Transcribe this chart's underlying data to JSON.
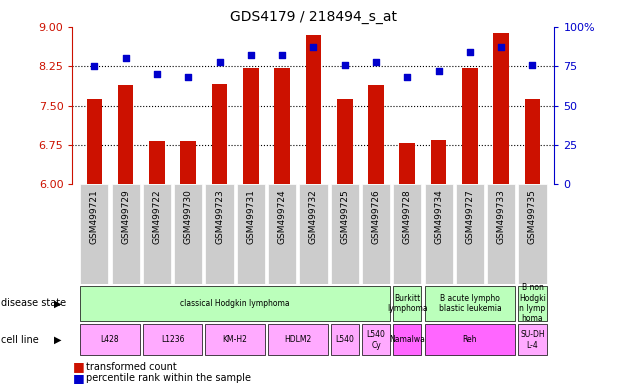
{
  "title": "GDS4179 / 218494_s_at",
  "samples": [
    "GSM499721",
    "GSM499729",
    "GSM499722",
    "GSM499730",
    "GSM499723",
    "GSM499731",
    "GSM499724",
    "GSM499732",
    "GSM499725",
    "GSM499726",
    "GSM499728",
    "GSM499734",
    "GSM499727",
    "GSM499733",
    "GSM499735"
  ],
  "transformed_count": [
    7.62,
    7.9,
    6.82,
    6.82,
    7.92,
    8.22,
    8.22,
    8.85,
    7.62,
    7.9,
    6.78,
    6.85,
    8.22,
    8.88,
    7.62
  ],
  "percentile_rank": [
    75,
    80,
    70,
    68,
    78,
    82,
    82,
    87,
    76,
    78,
    68,
    72,
    84,
    87,
    76
  ],
  "ylim_left": [
    6,
    9
  ],
  "ylim_right": [
    0,
    100
  ],
  "yticks_left": [
    6,
    6.75,
    7.5,
    8.25,
    9
  ],
  "yticks_right": [
    0,
    25,
    50,
    75,
    100
  ],
  "bar_color": "#cc1100",
  "dot_color": "#0000cc",
  "hlines": [
    6.75,
    7.5,
    8.25
  ],
  "bar_width": 0.5,
  "ax_color": "#cc1100",
  "ax2_color": "#0000cc",
  "bg_color": "#ffffff",
  "tick_bg": "#cccccc",
  "disease_states": [
    {
      "label": "classical Hodgkin lymphoma",
      "span": [
        0,
        9
      ],
      "color": "#bbffbb"
    },
    {
      "label": "Burkitt\nlymphoma",
      "span": [
        10,
        10
      ],
      "color": "#bbffbb"
    },
    {
      "label": "B acute lympho\nblastic leukemia",
      "span": [
        11,
        13
      ],
      "color": "#bbffbb"
    },
    {
      "label": "B non\nHodgki\nn lymp\nhoma",
      "span": [
        14,
        14
      ],
      "color": "#bbffbb"
    }
  ],
  "cell_lines": [
    {
      "label": "L428",
      "span": [
        0,
        1
      ],
      "color": "#ffaaff"
    },
    {
      "label": "L1236",
      "span": [
        2,
        3
      ],
      "color": "#ffaaff"
    },
    {
      "label": "KM-H2",
      "span": [
        4,
        5
      ],
      "color": "#ffaaff"
    },
    {
      "label": "HDLM2",
      "span": [
        6,
        7
      ],
      "color": "#ffaaff"
    },
    {
      "label": "L540",
      "span": [
        8,
        8
      ],
      "color": "#ffaaff"
    },
    {
      "label": "L540\nCy",
      "span": [
        9,
        9
      ],
      "color": "#ffaaff"
    },
    {
      "label": "Namalwa",
      "span": [
        10,
        10
      ],
      "color": "#ff66ff"
    },
    {
      "label": "Reh",
      "span": [
        11,
        13
      ],
      "color": "#ff66ff"
    },
    {
      "label": "SU-DH\nL-4",
      "span": [
        14,
        14
      ],
      "color": "#ffaaff"
    }
  ]
}
